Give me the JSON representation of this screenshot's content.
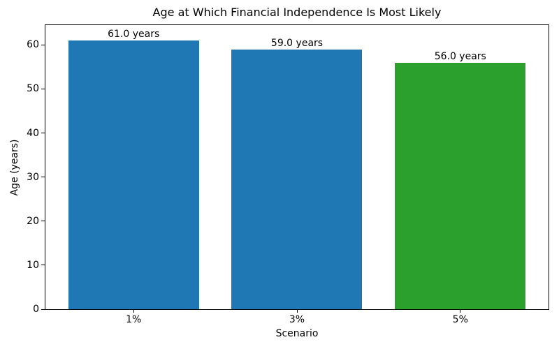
{
  "chart_data": {
    "type": "bar",
    "title": "Age at Which Financial Independence Is Most Likely",
    "xlabel": "Scenario",
    "ylabel": "Age (years)",
    "categories": [
      "1%",
      "3%",
      "5%"
    ],
    "values": [
      61.0,
      59.0,
      56.0
    ],
    "bar_labels": [
      "61.0 years",
      "59.0 years",
      "56.0 years"
    ],
    "bar_colors": [
      "#1f77b4",
      "#1f77b4",
      "#2ca02c"
    ],
    "bar_width": 0.8,
    "xlim": [
      -0.54,
      2.54
    ],
    "ylim": [
      0,
      64.5
    ],
    "yticks": [
      0,
      10,
      20,
      30,
      40,
      50,
      60
    ],
    "grid": false,
    "legend": null,
    "background_color": "#ffffff",
    "spine_color": "#000000",
    "text_color": "#000000"
  }
}
